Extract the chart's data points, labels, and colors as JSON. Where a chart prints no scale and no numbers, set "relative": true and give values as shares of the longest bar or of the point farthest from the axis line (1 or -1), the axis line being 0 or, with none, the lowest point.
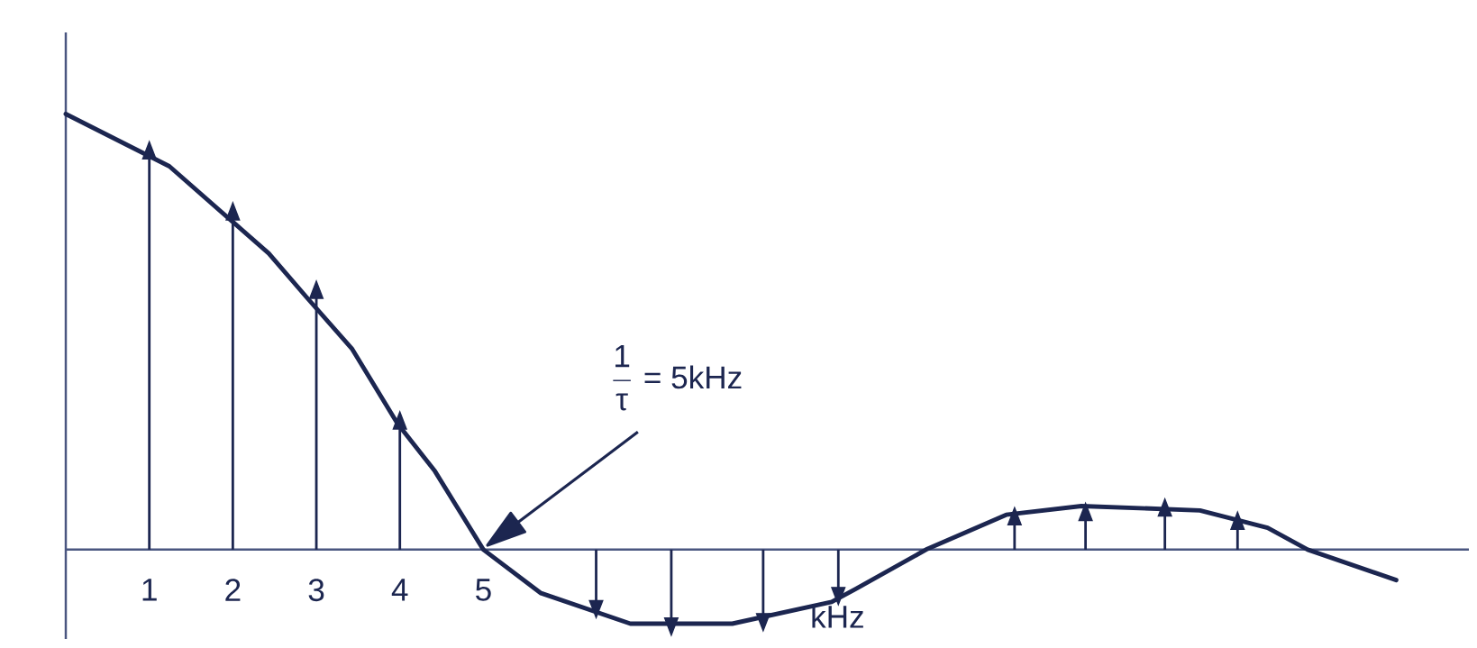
{
  "chart_data": {
    "type": "line",
    "relative": true,
    "xlabel": "kHz",
    "xlim": [
      0,
      16.8
    ],
    "xticks": [
      1,
      2,
      3,
      4,
      5
    ],
    "annotations": [
      "\\frac{\\text{1}}{\\text{τ}}\\text{ = 5kHz}"
    ],
    "series": [
      {
        "color": "#1c2650",
        "x": [
          0,
          1.24,
          2.43,
          2.88,
          3.43,
          3.97,
          4.42,
          5.0,
          5.69,
          6.76,
          7.98,
          9.17,
          9.46,
          10.3,
          11.26,
          12.16,
          13.58,
          14.39,
          14.87,
          15.93
        ],
        "values": [
          1.0,
          0.88,
          0.68,
          0.58,
          0.46,
          0.29,
          0.18,
          0,
          -0.1,
          -0.17,
          -0.17,
          -0.12,
          -0.09,
          0,
          0.08,
          0.1,
          0.09,
          0.05,
          0,
          -0.07
        ]
      },
      {
        "type": "lollipop",
        "color": "#1c2650",
        "marker": "triangle",
        "x": [
          1,
          2,
          3,
          4,
          6.35,
          7.25,
          8.35,
          9.25,
          11.36,
          12.21,
          13.16,
          14.03
        ],
        "values": [
          0.91,
          0.77,
          0.59,
          0.29,
          -0.13,
          -0.17,
          -0.16,
          -0.1,
          0.07,
          0.08,
          0.09,
          0.06
        ]
      }
    ]
  }
}
